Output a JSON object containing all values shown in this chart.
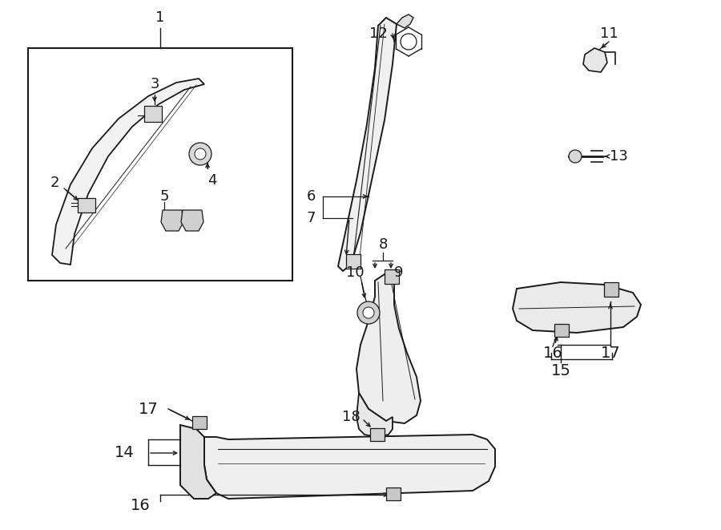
{
  "bg_color": "#ffffff",
  "lc": "#1a1a1a",
  "fig_w": 9.0,
  "fig_h": 6.61,
  "dpi": 100
}
